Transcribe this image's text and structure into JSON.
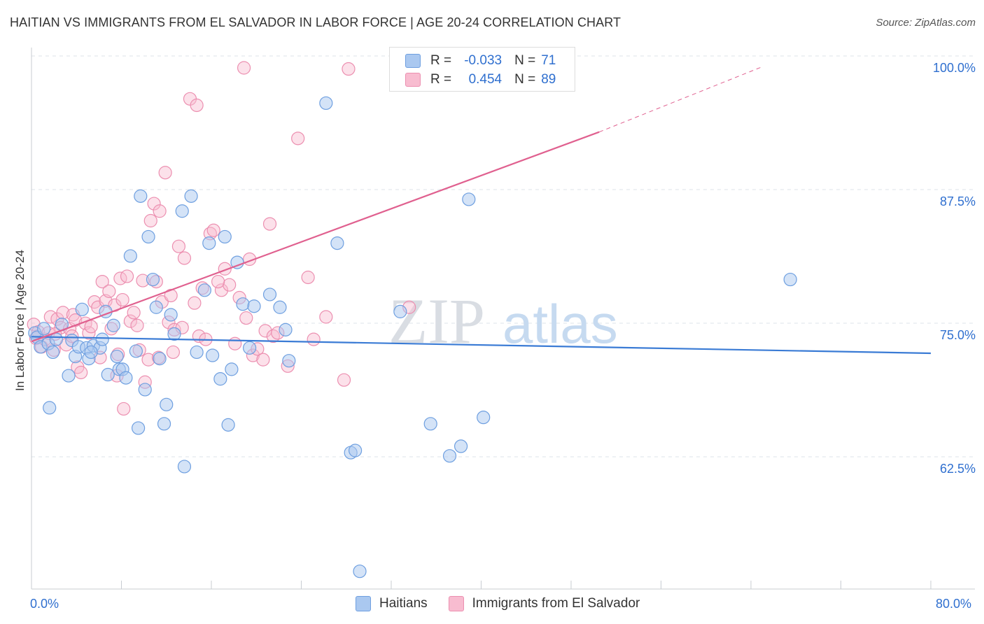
{
  "header": {
    "title": "HAITIAN VS IMMIGRANTS FROM EL SALVADOR IN LABOR FORCE | AGE 20-24 CORRELATION CHART",
    "source": "Source: ZipAtlas.com"
  },
  "watermark": {
    "zip": "ZIP",
    "atlas": "atlas"
  },
  "legend": {
    "haitians": {
      "r_label": "R =",
      "r_value": "-0.033",
      "n_label": "N =",
      "n_value": "71"
    },
    "salvador": {
      "r_label": "R =",
      "r_value": "0.454",
      "n_label": "N =",
      "n_value": "89"
    }
  },
  "colors": {
    "haitians_fill": "#aac8f0",
    "haitians_stroke": "#6e9fe0",
    "haitians_line": "#3a7bd5",
    "salvador_fill": "#f8bcd0",
    "salvador_stroke": "#ec8fb0",
    "salvador_line": "#e0608f",
    "tick_text": "#2f6fcf",
    "grid": "#dde3ea"
  },
  "chart_data": {
    "type": "scatter",
    "title": "HAITIAN VS IMMIGRANTS FROM EL SALVADOR IN LABOR FORCE | AGE 20-24 CORRELATION CHART",
    "xlabel": "",
    "ylabel": "In Labor Force | Age 20-24",
    "xlim": [
      0,
      80
    ],
    "ylim": [
      51,
      101
    ],
    "x_tick_labels": [
      "0.0%",
      "80.0%"
    ],
    "y_ticks": [
      {
        "value": 100,
        "label": "100.0%"
      },
      {
        "value": 87.5,
        "label": "87.5%"
      },
      {
        "value": 75,
        "label": "75.0%"
      },
      {
        "value": 62.5,
        "label": "62.5%"
      }
    ],
    "series": [
      {
        "name": "Haitians",
        "r": -0.033,
        "n": 71,
        "trend": {
          "x0": 0,
          "y0": 74.85,
          "x1": 80,
          "y1": 73.3
        },
        "points": [
          [
            0.3,
            75.2
          ],
          [
            0.5,
            74.8
          ],
          [
            0.8,
            73.9
          ],
          [
            1.1,
            75.6
          ],
          [
            1.5,
            74.2
          ],
          [
            1.6,
            68.2
          ],
          [
            1.9,
            73.4
          ],
          [
            2.2,
            74.6
          ],
          [
            2.7,
            76
          ],
          [
            3.3,
            71.2
          ],
          [
            3.6,
            74.5
          ],
          [
            3.9,
            73
          ],
          [
            4.2,
            73.9
          ],
          [
            4.5,
            77.4
          ],
          [
            4.9,
            73.8
          ],
          [
            5.1,
            72.8
          ],
          [
            5.5,
            74
          ],
          [
            6.1,
            73.8
          ],
          [
            6.3,
            74.6
          ],
          [
            6.6,
            77.2
          ],
          [
            6.8,
            71.3
          ],
          [
            7.3,
            75.9
          ],
          [
            7.6,
            73
          ],
          [
            7.8,
            71.8
          ],
          [
            8.1,
            71.8
          ],
          [
            8.4,
            71
          ],
          [
            8.8,
            82.4
          ],
          [
            9.3,
            73.5
          ],
          [
            9.5,
            66.3
          ],
          [
            9.7,
            88
          ],
          [
            10.1,
            69.9
          ],
          [
            10.4,
            84.2
          ],
          [
            10.8,
            80.2
          ],
          [
            11.1,
            77.6
          ],
          [
            11.4,
            72.8
          ],
          [
            11.8,
            66.7
          ],
          [
            12,
            68.5
          ],
          [
            12.4,
            76.9
          ],
          [
            12.7,
            75.1
          ],
          [
            13.4,
            86.6
          ],
          [
            13.6,
            62.7
          ],
          [
            14.2,
            88
          ],
          [
            14.7,
            73.4
          ],
          [
            15.4,
            79.2
          ],
          [
            15.8,
            83.6
          ],
          [
            16.1,
            73.1
          ],
          [
            16.8,
            70.9
          ],
          [
            17.2,
            84.2
          ],
          [
            17.5,
            66.6
          ],
          [
            17.8,
            71.8
          ],
          [
            18.3,
            81.8
          ],
          [
            18.8,
            77.9
          ],
          [
            19.4,
            73.8
          ],
          [
            19.8,
            77.7
          ],
          [
            21.2,
            78.8
          ],
          [
            22.1,
            77.6
          ],
          [
            22.6,
            75.5
          ],
          [
            22.9,
            72.6
          ],
          [
            26.2,
            96.7
          ],
          [
            27.2,
            83.6
          ],
          [
            28.4,
            64
          ],
          [
            28.8,
            64.2
          ],
          [
            29.2,
            52.9
          ],
          [
            32.8,
            77.2
          ],
          [
            35.5,
            66.7
          ],
          [
            37.2,
            63.7
          ],
          [
            38.2,
            64.6
          ],
          [
            38.9,
            87.7
          ],
          [
            40.2,
            67.3
          ],
          [
            67.5,
            80.2
          ],
          [
            5.3,
            73.4
          ]
        ]
      },
      {
        "name": "Immigrants from El Salvador",
        "r": 0.454,
        "n": 89,
        "trend": {
          "x0": 0,
          "y0": 74.4,
          "x1": 50.5,
          "y1": 94
        },
        "trend_dashed": {
          "x0": 50.5,
          "y0": 94,
          "x1": 65,
          "y1": 100.1
        },
        "points": [
          [
            0.2,
            76
          ],
          [
            0.4,
            74.7
          ],
          [
            0.6,
            75.3
          ],
          [
            0.9,
            73.9
          ],
          [
            1.2,
            74.6
          ],
          [
            1.5,
            75.2
          ],
          [
            1.7,
            76.7
          ],
          [
            2,
            73.6
          ],
          [
            2.3,
            76.5
          ],
          [
            2.6,
            75.7
          ],
          [
            2.8,
            77.1
          ],
          [
            3.1,
            74.1
          ],
          [
            3.4,
            75.6
          ],
          [
            3.7,
            76.9
          ],
          [
            3.9,
            76.4
          ],
          [
            4.1,
            72
          ],
          [
            4.4,
            71.5
          ],
          [
            4.8,
            76.1
          ],
          [
            5.1,
            75.2
          ],
          [
            5.3,
            75.8
          ],
          [
            5.6,
            78.1
          ],
          [
            5.9,
            77.6
          ],
          [
            6.1,
            72.9
          ],
          [
            6.3,
            80
          ],
          [
            6.6,
            78.2
          ],
          [
            6.9,
            79.1
          ],
          [
            7.1,
            75.6
          ],
          [
            7.4,
            77.8
          ],
          [
            7.6,
            71.2
          ],
          [
            7.9,
            80.3
          ],
          [
            8.1,
            78.3
          ],
          [
            8.2,
            68.1
          ],
          [
            8.5,
            80.5
          ],
          [
            8.8,
            76.3
          ],
          [
            9.1,
            77.1
          ],
          [
            9.4,
            75.9
          ],
          [
            9.6,
            73.6
          ],
          [
            9.9,
            80.1
          ],
          [
            10.1,
            70.6
          ],
          [
            10.4,
            72.7
          ],
          [
            10.6,
            85.7
          ],
          [
            10.9,
            87.3
          ],
          [
            11.1,
            80
          ],
          [
            11.4,
            86.6
          ],
          [
            11.6,
            78.1
          ],
          [
            11.9,
            90.2
          ],
          [
            12.2,
            76.2
          ],
          [
            12.4,
            78.7
          ],
          [
            12.7,
            75.5
          ],
          [
            13.1,
            83.3
          ],
          [
            13.4,
            75.7
          ],
          [
            13.6,
            82.2
          ],
          [
            14.1,
            97.1
          ],
          [
            14.7,
            96.5
          ],
          [
            14.9,
            74.9
          ],
          [
            15.2,
            79.4
          ],
          [
            15.5,
            74.6
          ],
          [
            15.9,
            84.5
          ],
          [
            16.2,
            84.8
          ],
          [
            16.9,
            79.2
          ],
          [
            17.2,
            81.2
          ],
          [
            17.6,
            79.7
          ],
          [
            18.1,
            74.2
          ],
          [
            18.5,
            78.5
          ],
          [
            19.1,
            76.6
          ],
          [
            19.4,
            82.1
          ],
          [
            19.7,
            73.1
          ],
          [
            20.1,
            73.7
          ],
          [
            20.6,
            72.7
          ],
          [
            20.8,
            75.4
          ],
          [
            21.2,
            85.4
          ],
          [
            21.5,
            74.9
          ],
          [
            21.9,
            75.2
          ],
          [
            22.8,
            72.1
          ],
          [
            23.7,
            93.4
          ],
          [
            24.6,
            80.4
          ],
          [
            25.1,
            74.6
          ],
          [
            26.2,
            76.7
          ],
          [
            27.8,
            70.8
          ],
          [
            28.2,
            99.9
          ],
          [
            33.6,
            77.6
          ],
          [
            2.1,
            75.1
          ],
          [
            3.6,
            74.9
          ],
          [
            7.7,
            73.2
          ],
          [
            11.3,
            72.9
          ],
          [
            12.6,
            73.4
          ],
          [
            14.5,
            78
          ],
          [
            16.6,
            80
          ],
          [
            18.9,
            100
          ]
        ]
      }
    ]
  }
}
